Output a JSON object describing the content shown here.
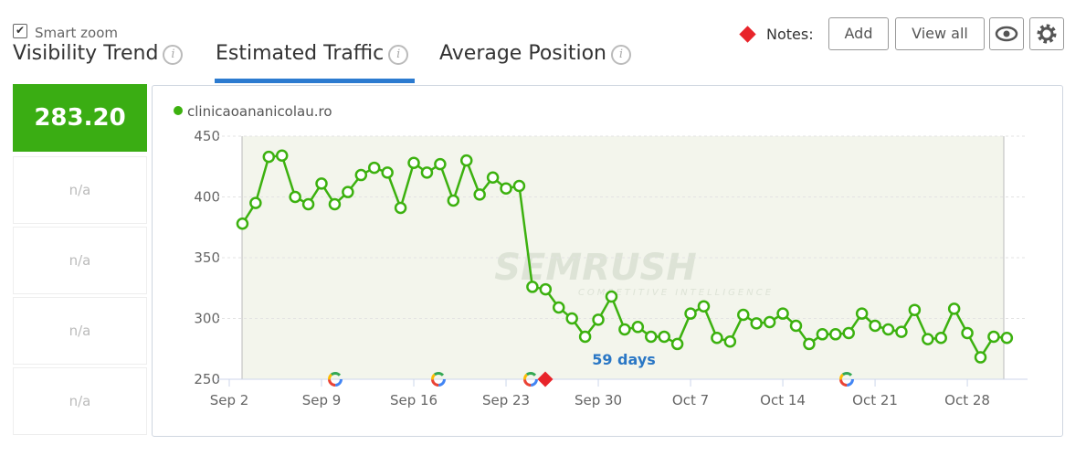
{
  "smart_zoom": "Smart zoom",
  "tabs": [
    "Visibility Trend",
    "Estimated Traffic",
    "Average Position"
  ],
  "notes": {
    "label": "Notes:",
    "add": "Add",
    "view_all": "View all"
  },
  "metrics": [
    "283.20",
    "n/a",
    "n/a",
    "n/a",
    "n/a"
  ],
  "chart_data": {
    "type": "line",
    "watermark": {
      "brand": "SEMRUSH",
      "tagline": "COMPETITIVE INTELLIGENCE"
    },
    "annotation": "59 days",
    "x": [
      "Sep 3",
      "Sep 4",
      "Sep 5",
      "Sep 6",
      "Sep 7",
      "Sep 8",
      "Sep 9",
      "Sep 10",
      "Sep 11",
      "Sep 12",
      "Sep 13",
      "Sep 14",
      "Sep 15",
      "Sep 16",
      "Sep 17",
      "Sep 18",
      "Sep 19",
      "Sep 20",
      "Sep 21",
      "Sep 22",
      "Sep 23",
      "Sep 24",
      "Sep 25",
      "Sep 26",
      "Sep 27",
      "Sep 28",
      "Sep 29",
      "Sep 30",
      "Oct 1",
      "Oct 2",
      "Oct 3",
      "Oct 4",
      "Oct 5",
      "Oct 6",
      "Oct 7",
      "Oct 8",
      "Oct 9",
      "Oct 10",
      "Oct 11",
      "Oct 12",
      "Oct 13",
      "Oct 14",
      "Oct 15",
      "Oct 16",
      "Oct 17",
      "Oct 18",
      "Oct 19",
      "Oct 20",
      "Oct 21",
      "Oct 22",
      "Oct 23",
      "Oct 24",
      "Oct 25",
      "Oct 26",
      "Oct 27",
      "Oct 28",
      "Oct 29",
      "Oct 30",
      "Oct 31"
    ],
    "series": [
      {
        "name": "clinicaoananicolau.ro",
        "color": "#3cb10f",
        "values": [
          378,
          395,
          433,
          434,
          400,
          394,
          411,
          394,
          404,
          418,
          424,
          420,
          391,
          428,
          420,
          427,
          397,
          430,
          402,
          416,
          407,
          409,
          326,
          324,
          309,
          300,
          285,
          299,
          318,
          291,
          293,
          285,
          285,
          279,
          304,
          310,
          284,
          281,
          303,
          296,
          297,
          304,
          294,
          279,
          287,
          287,
          288,
          304,
          294,
          291,
          289,
          307,
          283,
          284,
          308,
          288,
          268,
          285,
          284
        ]
      }
    ],
    "xticks": [
      "Sep 2",
      "Sep 9",
      "Sep 16",
      "Sep 23",
      "Sep 30",
      "Oct 7",
      "Oct 14",
      "Oct 21",
      "Oct 28"
    ],
    "ylim": [
      250,
      450
    ],
    "yticks": [
      250,
      300,
      350,
      400,
      450
    ],
    "grid": true
  }
}
